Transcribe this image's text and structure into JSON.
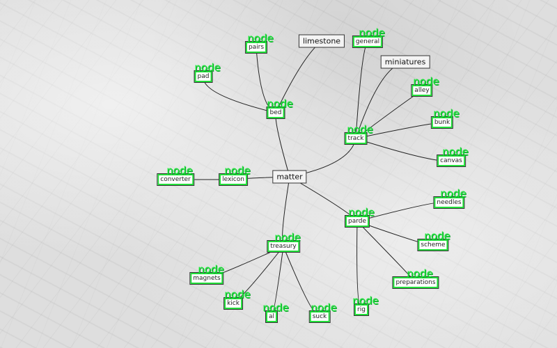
{
  "diagram": {
    "root": "matter",
    "tag_text": "node",
    "nodes": {
      "matter": {
        "label": "matter",
        "style": "plain"
      },
      "limestone": {
        "label": "limestone",
        "style": "plain"
      },
      "miniatures": {
        "label": "miniatures",
        "style": "plain"
      },
      "bed": {
        "label": "bed",
        "style": "green"
      },
      "pairs": {
        "label": "pairs",
        "style": "green"
      },
      "pad": {
        "label": "pad",
        "style": "green"
      },
      "track": {
        "label": "track",
        "style": "green"
      },
      "general": {
        "label": "general",
        "style": "green"
      },
      "alley": {
        "label": "alley",
        "style": "green"
      },
      "bunk": {
        "label": "bunk",
        "style": "green"
      },
      "canvas": {
        "label": "canvas",
        "style": "green"
      },
      "lexicon": {
        "label": "lexicon",
        "style": "green"
      },
      "converter": {
        "label": "converter",
        "style": "green"
      },
      "paradise": {
        "label": "parde",
        "style": "green"
      },
      "needles": {
        "label": "needles",
        "style": "green"
      },
      "scheme": {
        "label": "scheme",
        "style": "green"
      },
      "preparations": {
        "label": "preparations",
        "style": "green"
      },
      "rig": {
        "label": "rig",
        "style": "green"
      },
      "treasury": {
        "label": "treasury",
        "style": "green"
      },
      "magnets": {
        "label": "magnets",
        "style": "green"
      },
      "kick": {
        "label": "kick",
        "style": "green"
      },
      "al": {
        "label": "al",
        "style": "green"
      },
      "suck": {
        "label": "suck",
        "style": "green"
      }
    },
    "edges": [
      [
        "matter",
        "bed"
      ],
      [
        "bed",
        "pairs"
      ],
      [
        "bed",
        "pad"
      ],
      [
        "bed",
        "limestone"
      ],
      [
        "matter",
        "track"
      ],
      [
        "track",
        "general"
      ],
      [
        "track",
        "miniatures"
      ],
      [
        "track",
        "alley"
      ],
      [
        "track",
        "bunk"
      ],
      [
        "track",
        "canvas"
      ],
      [
        "matter",
        "lexicon"
      ],
      [
        "lexicon",
        "converter"
      ],
      [
        "matter",
        "paradise"
      ],
      [
        "paradise",
        "needles"
      ],
      [
        "paradise",
        "scheme"
      ],
      [
        "paradise",
        "preparations"
      ],
      [
        "paradise",
        "rig"
      ],
      [
        "matter",
        "treasury"
      ],
      [
        "treasury",
        "magnets"
      ],
      [
        "treasury",
        "kick"
      ],
      [
        "treasury",
        "al"
      ],
      [
        "treasury",
        "suck"
      ]
    ]
  }
}
